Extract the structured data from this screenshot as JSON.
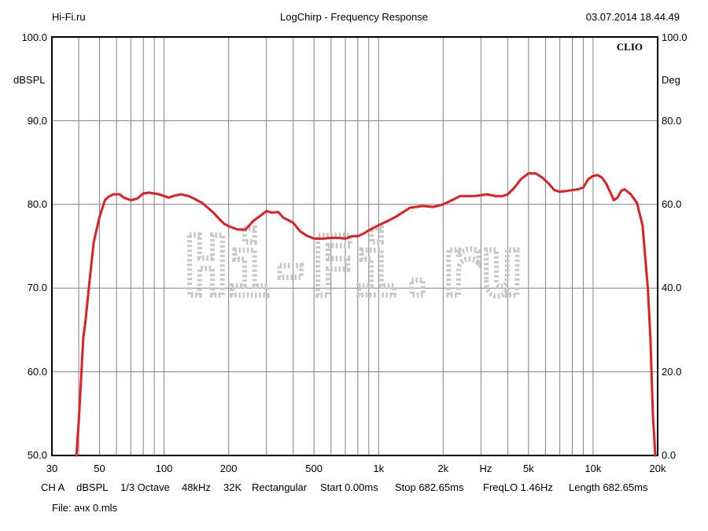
{
  "header": {
    "left": "Hi-Fi.ru",
    "center": "LogChirp - Frequency Response",
    "right": "03.07.2014 18.44.49"
  },
  "clio_label": "CLIO",
  "watermark": "Hi-Fi.ru",
  "info_items": [
    "CH A",
    "dBSPL",
    "1/3 Octave",
    "48kHz",
    "32K",
    "Rectangular",
    "Start 0.00ms",
    "Stop 682.65ms",
    "FreqLO 1.46Hz",
    "Length 682.65ms"
  ],
  "file_label": "File: ачх 0.mls",
  "colors": {
    "curve": "#e02020",
    "grid": "#808080",
    "watermark": "#c8c8c8"
  },
  "chart_data": {
    "type": "line",
    "title": "LogChirp - Frequency Response",
    "xlabel": "Hz",
    "ylabel": "dBSPL",
    "y2label": "Deg",
    "xscale": "log",
    "xlim": [
      30,
      20000
    ],
    "ylim": [
      50,
      100
    ],
    "y2lim": [
      0,
      100
    ],
    "grid": true,
    "x_ticks": [
      "30",
      "50",
      "100",
      "200",
      "500",
      "1k",
      "2k",
      "Hz",
      "5k",
      "10k",
      "20k"
    ],
    "x_tick_values": [
      30,
      50,
      100,
      200,
      500,
      1000,
      2000,
      3160,
      5000,
      10000,
      20000
    ],
    "y_ticks_left": [
      "50.0",
      "60.0",
      "70.0",
      "80.0",
      "90.0",
      "100.0"
    ],
    "y_ticks_right": [
      "0.0",
      "20.0",
      "40.0",
      "60.0",
      "80.0",
      "100.0"
    ],
    "series": [
      {
        "x": [
          39,
          40,
          41,
          42,
          43,
          45,
          47,
          50,
          53,
          55,
          58,
          62,
          65,
          70,
          75,
          80,
          85,
          90,
          95,
          100,
          105,
          110,
          120,
          130,
          140,
          150,
          160,
          170,
          180,
          190,
          200,
          220,
          240,
          260,
          280,
          300,
          320,
          340,
          360,
          380,
          400,
          430,
          460,
          500,
          550,
          600,
          650,
          700,
          750,
          800,
          850,
          900,
          1000,
          1100,
          1200,
          1400,
          1600,
          1800,
          2000,
          2200,
          2400,
          2600,
          2800,
          3000,
          3200,
          3500,
          3800,
          4000,
          4300,
          4600,
          5000,
          5400,
          5800,
          6200,
          6600,
          7000,
          7500,
          8000,
          8500,
          9000,
          9500,
          10000,
          10500,
          11000,
          11500,
          12000,
          12500,
          13000,
          13500,
          14000,
          15000,
          16000,
          17000,
          18000,
          18500,
          19000,
          19500
        ],
        "y": [
          50,
          54,
          59,
          64,
          66,
          71,
          75.5,
          78.5,
          80.5,
          80.9,
          81.2,
          81.2,
          80.8,
          80.5,
          80.7,
          81.3,
          81.4,
          81.3,
          81.2,
          81.0,
          80.8,
          81.0,
          81.2,
          81.0,
          80.6,
          80.2,
          79.6,
          79.0,
          78.3,
          77.7,
          77.4,
          77.0,
          77.0,
          78.0,
          78.6,
          79.2,
          79.0,
          79.1,
          78.4,
          78.1,
          77.8,
          76.8,
          76.3,
          75.9,
          75.9,
          76.0,
          76.0,
          75.9,
          76.2,
          76.2,
          76.5,
          76.9,
          77.5,
          78.0,
          78.5,
          79.6,
          79.8,
          79.7,
          80.0,
          80.5,
          81.0,
          81.0,
          81.0,
          81.1,
          81.2,
          81.0,
          81.0,
          81.2,
          82.0,
          83.0,
          83.7,
          83.7,
          83.2,
          82.5,
          81.7,
          81.5,
          81.6,
          81.7,
          81.8,
          82.0,
          83.0,
          83.4,
          83.5,
          83.2,
          82.5,
          81.5,
          80.5,
          80.8,
          81.6,
          81.8,
          81.2,
          80.2,
          77.5,
          70,
          64,
          55,
          50
        ]
      }
    ]
  }
}
